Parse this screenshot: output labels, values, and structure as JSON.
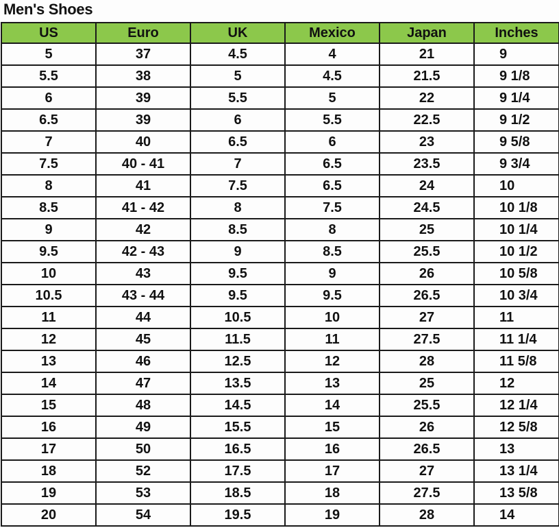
{
  "title": "Men's Shoes",
  "header_color": "#8cc84b",
  "columns": [
    "US",
    "Euro",
    "UK",
    "Mexico",
    "Japan",
    "Inches"
  ],
  "rows": [
    [
      "5",
      "37",
      "4.5",
      "4",
      "21",
      "9"
    ],
    [
      "5.5",
      "38",
      "5",
      "4.5",
      "21.5",
      "9 1/8"
    ],
    [
      "6",
      "39",
      "5.5",
      "5",
      "22",
      "9 1/4"
    ],
    [
      "6.5",
      "39",
      "6",
      "5.5",
      "22.5",
      "9 1/2"
    ],
    [
      "7",
      "40",
      "6.5",
      "6",
      "23",
      "9 5/8"
    ],
    [
      "7.5",
      "40 - 41",
      "7",
      "6.5",
      "23.5",
      "9 3/4"
    ],
    [
      "8",
      "41",
      "7.5",
      "6.5",
      "24",
      "10"
    ],
    [
      "8.5",
      "41 - 42",
      "8",
      "7.5",
      "24.5",
      "10 1/8"
    ],
    [
      "9",
      "42",
      "8.5",
      "8",
      "25",
      "10 1/4"
    ],
    [
      "9.5",
      "42 - 43",
      "9",
      "8.5",
      "25.5",
      "10 1/2"
    ],
    [
      "10",
      "43",
      "9.5",
      "9",
      "26",
      "10 5/8"
    ],
    [
      "10.5",
      "43 - 44",
      "9.5",
      "9.5",
      "26.5",
      "10 3/4"
    ],
    [
      "11",
      "44",
      "10.5",
      "10",
      "27",
      "11"
    ],
    [
      "12",
      "45",
      "11.5",
      "11",
      "27.5",
      "11 1/4"
    ],
    [
      "13",
      "46",
      "12.5",
      "12",
      "28",
      "11 5/8"
    ],
    [
      "14",
      "47",
      "13.5",
      "13",
      "25",
      "12"
    ],
    [
      "15",
      "48",
      "14.5",
      "14",
      "25.5",
      "12 1/4"
    ],
    [
      "16",
      "49",
      "15.5",
      "15",
      "26",
      "12 5/8"
    ],
    [
      "17",
      "50",
      "16.5",
      "16",
      "26.5",
      "13"
    ],
    [
      "18",
      "52",
      "17.5",
      "17",
      "27",
      "13 1/4"
    ],
    [
      "19",
      "53",
      "18.5",
      "18",
      "27.5",
      "13 5/8"
    ],
    [
      "20",
      "54",
      "19.5",
      "19",
      "28",
      "14"
    ]
  ]
}
